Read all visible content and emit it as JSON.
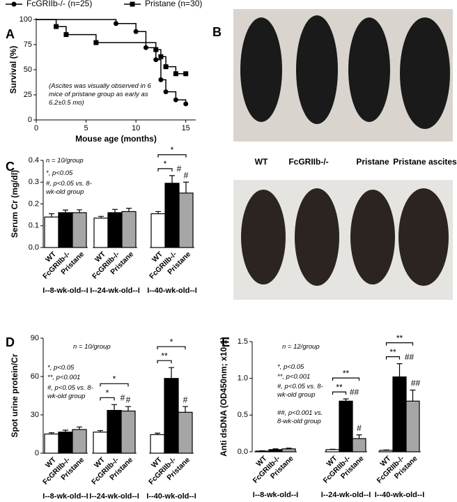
{
  "chart_data": [
    {
      "type": "line",
      "panel": "A",
      "xlabel": "Mouse age (months)",
      "ylabel": "Survival (%)",
      "xlim": [
        0,
        16
      ],
      "xticks": [
        0,
        5,
        10,
        15
      ],
      "ylim": [
        0,
        100
      ],
      "yticks": [
        0,
        25,
        50,
        75,
        100
      ],
      "annotation": "(Ascites was visually observed in 6 mice of pristane group as early as 6.2±0.5 mo)",
      "series": [
        {
          "name": "FcGRIIb-/- (n=25)",
          "color": "#000000",
          "marker": "circle",
          "x": [
            0,
            8,
            10,
            11,
            12,
            12.5,
            13,
            14,
            15
          ],
          "values": [
            100,
            96,
            88,
            72,
            60,
            40,
            28,
            20,
            16
          ]
        },
        {
          "name": "Pristane (n=30)",
          "color": "#000000",
          "marker": "square",
          "x": [
            0,
            2,
            3,
            6,
            12,
            12.5,
            13,
            14,
            15
          ],
          "values": [
            100,
            93,
            85,
            77,
            70,
            63,
            53,
            46,
            46
          ]
        }
      ]
    },
    {
      "type": "bar",
      "panel": "C",
      "ylabel": "Serum Cr (mg/dl)",
      "ylim": [
        0,
        0.4
      ],
      "yticks": [
        {
          "value": 0,
          "label": "0.0"
        },
        0.1,
        0.2,
        0.3,
        0.4
      ],
      "groups": [
        "I--8-wk-old--I",
        "I--24-wk-old--I",
        "I--40-wk-old--I"
      ],
      "series": [
        {
          "name": "WT",
          "color": "#ffffff",
          "values": [
            0.14,
            0.135,
            0.155
          ],
          "errors": [
            0.015,
            0.008,
            0.01
          ]
        },
        {
          "name": "FcGRIIb-/-",
          "color": "#000000",
          "values": [
            0.16,
            0.16,
            0.295
          ],
          "errors": [
            0.012,
            0.015,
            0.035
          ]
        },
        {
          "name": "Pristane",
          "color": "#a6a6a6",
          "values": [
            0.16,
            0.165,
            0.25
          ],
          "errors": [
            0.013,
            0.015,
            0.05
          ]
        }
      ],
      "annotations": [
        "n = 10/group",
        "*, p<0.05",
        "#, p<0.05 vs. 8-wk-old group"
      ],
      "brackets": [
        "*",
        "*"
      ],
      "marks": [
        "#",
        "#"
      ]
    },
    {
      "type": "bar",
      "panel": "D",
      "ylabel": "Spot urine protein/Cr",
      "ylim": [
        0,
        90
      ],
      "yticks": [
        0,
        30,
        60,
        90
      ],
      "groups": [
        "I--8-wk-old--I",
        "I--24-wk-old--I",
        "I--40-wk-old--I"
      ],
      "series": [
        {
          "name": "WT",
          "color": "#ffffff",
          "values": [
            15,
            16.5,
            14.5
          ],
          "errors": [
            1,
            1.2,
            1.2
          ]
        },
        {
          "name": "FcGRIIb-/-",
          "color": "#000000",
          "values": [
            16.5,
            33.5,
            58.5
          ],
          "errors": [
            1.5,
            4.5,
            8.5
          ]
        },
        {
          "name": "Pristane",
          "color": "#a6a6a6",
          "values": [
            18.5,
            33,
            32
          ],
          "errors": [
            2,
            3.5,
            4.5
          ]
        }
      ],
      "annotations": [
        "n = 10/group",
        "*, p<0.05",
        "**, p<0.001",
        "#, p<0.05 vs. 8-wk-old group"
      ],
      "brackets": [
        "*",
        "*",
        "**",
        "*"
      ],
      "marks": [
        "#",
        "#",
        "#"
      ]
    },
    {
      "type": "bar",
      "panel": "E",
      "ylabel": "Anti dsDNA (OD450nm; x10-1)",
      "ylim": [
        0,
        1.5
      ],
      "yticks": [
        {
          "value": 0,
          "label": "0.0"
        },
        0.5,
        {
          "value": 1,
          "label": "1.0"
        },
        1.5
      ],
      "groups": [
        "I--8-wk-old--I",
        "I--24-wk-old--I",
        "I--40-wk-old--I"
      ],
      "series": [
        {
          "name": "WT",
          "color": "#ffffff",
          "values": [
            0.01,
            0.03,
            0.02
          ],
          "errors": [
            0.005,
            0.005,
            0.005
          ]
        },
        {
          "name": "FcGRIIb-/-",
          "color": "#000000",
          "values": [
            0.03,
            0.69,
            1.02
          ],
          "errors": [
            0.01,
            0.03,
            0.18
          ]
        },
        {
          "name": "Pristane",
          "color": "#a6a6a6",
          "values": [
            0.04,
            0.18,
            0.69
          ],
          "errors": [
            0.01,
            0.05,
            0.15
          ]
        }
      ],
      "annotations": [
        "n = 12/group",
        "*, p<0.05",
        "**, p<0.001",
        "#, p<0.05 vs. 8-wk-old group",
        "##, p<0.001 vs. 8-wk-old group"
      ],
      "brackets": [
        "**",
        "**",
        "**",
        "**"
      ],
      "marks": [
        "##",
        "#",
        "##",
        "##"
      ]
    }
  ],
  "photos": {
    "panel": "B",
    "labels": [
      "WT",
      "FcGRIIb-/-",
      "Pristane",
      "Pristane ascites"
    ]
  }
}
